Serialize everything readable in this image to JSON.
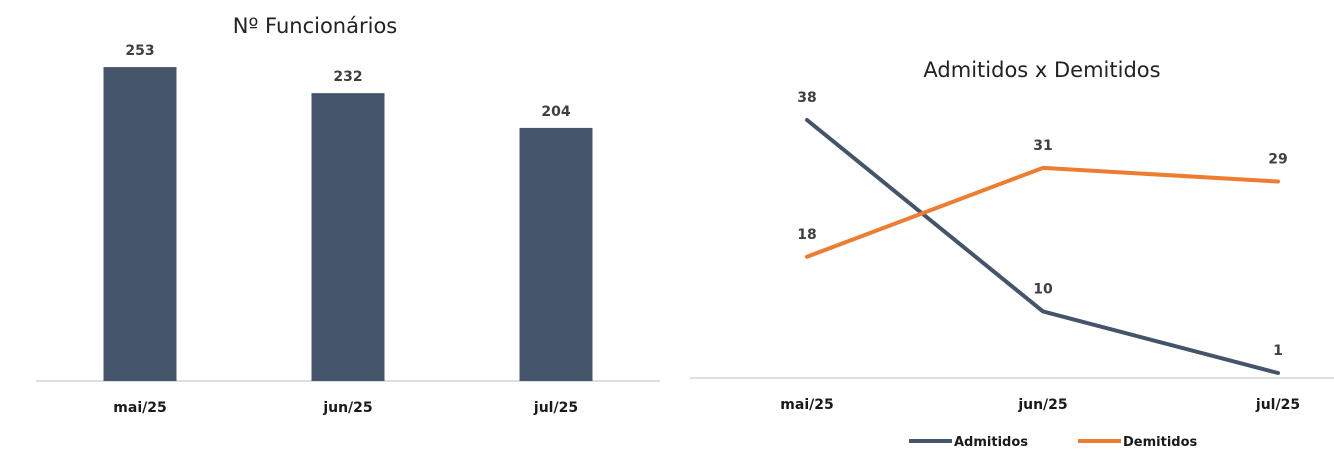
{
  "chart_data": [
    {
      "type": "bar",
      "title": "Nº Funcionários",
      "categories": [
        "mai/25",
        "jun/25",
        "jul/25"
      ],
      "values": [
        253,
        232,
        204
      ],
      "ylim": [
        0,
        270
      ],
      "grid": false,
      "legend": "none",
      "colors": {
        "bar": "#44546a",
        "axis": "#bfbfbf"
      }
    },
    {
      "type": "line",
      "title": "Admitidos x Demitidos",
      "categories": [
        "mai/25",
        "jun/25",
        "jul/25"
      ],
      "series": [
        {
          "name": "Admitidos",
          "values": [
            38,
            10,
            1
          ],
          "color": "#44546a"
        },
        {
          "name": "Demitidos",
          "values": [
            18,
            31,
            29
          ],
          "color": "#ed7d31"
        }
      ],
      "ylim": [
        0,
        40
      ],
      "grid": false,
      "legend": "bottom",
      "colors": {
        "axis": "#bfbfbf"
      }
    }
  ]
}
